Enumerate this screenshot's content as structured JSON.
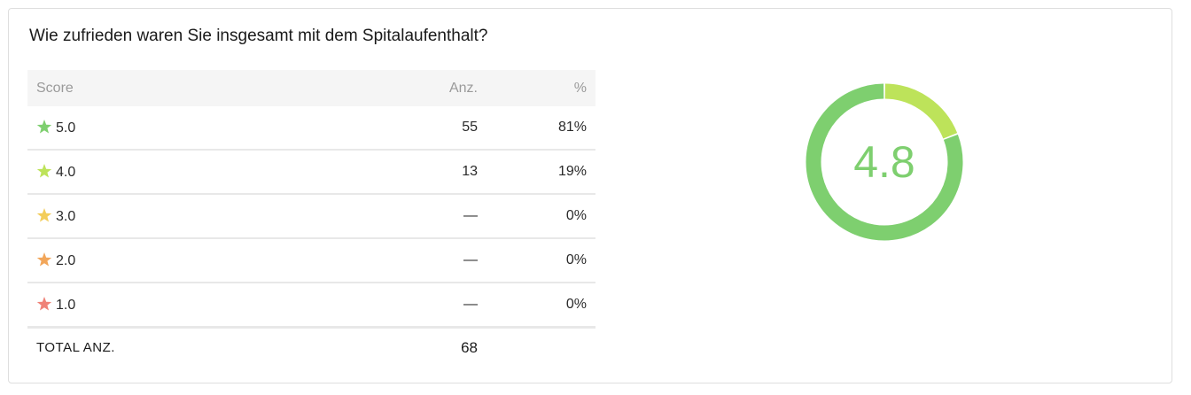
{
  "question": "Wie zufrieden waren Sie insgesamt mit dem Spitalaufenthalt?",
  "table": {
    "headers": {
      "score": "Score",
      "count": "Anz.",
      "pct": "%"
    },
    "rows": [
      {
        "score": "5.0",
        "count": "55",
        "pct": "81%",
        "color": "#7ecf6f"
      },
      {
        "score": "4.0",
        "count": "13",
        "pct": "19%",
        "color": "#bde35a"
      },
      {
        "score": "3.0",
        "count": "—",
        "pct": "0%",
        "color": "#f3cd5a"
      },
      {
        "score": "2.0",
        "count": "—",
        "pct": "0%",
        "color": "#f2a65a"
      },
      {
        "score": "1.0",
        "count": "—",
        "pct": "0%",
        "color": "#ef8278"
      }
    ],
    "total_label": "TOTAL ANZ.",
    "total_value": "68"
  },
  "chart_data": {
    "type": "pie",
    "center_label": "4.8",
    "slices": [
      {
        "label": "4.0",
        "value": 13,
        "color": "#bde35a"
      },
      {
        "label": "5.0",
        "value": 55,
        "color": "#7ecf6f"
      }
    ]
  }
}
